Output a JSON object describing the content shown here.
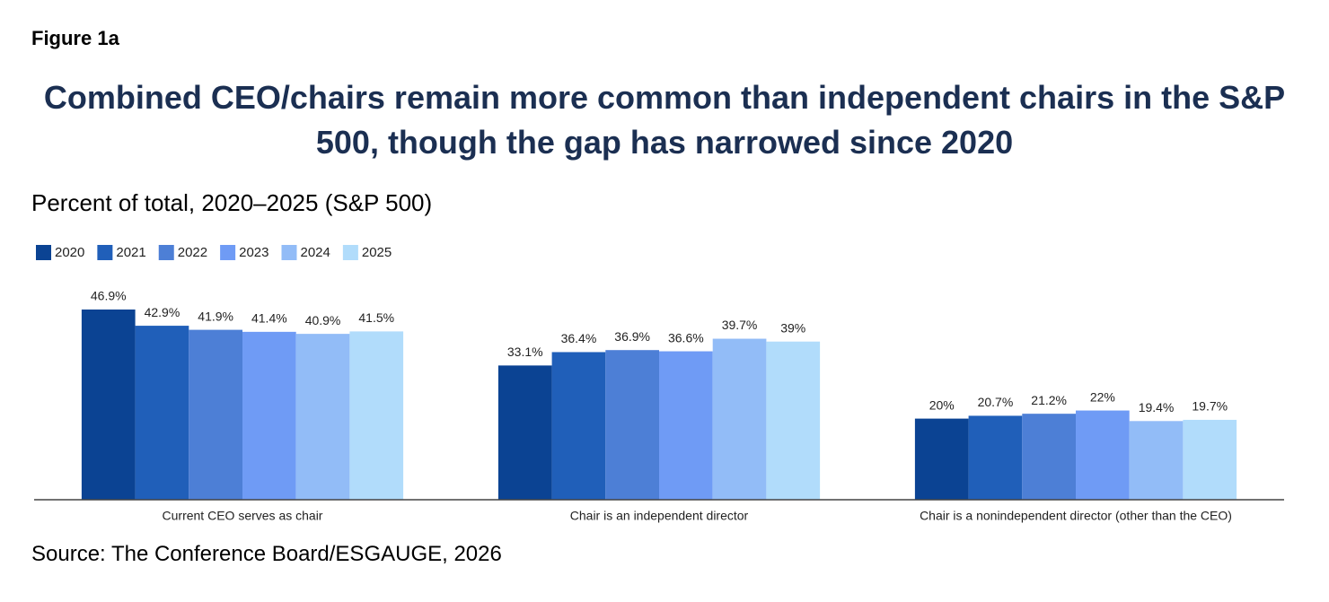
{
  "chart_data": {
    "type": "bar",
    "label": "Figure 1a",
    "title": "Combined CEO/chairs remain more common than independent chairs in the S&P 500, though the gap has narrowed since 2020",
    "subtitle": "Percent of total, 2020–2025 (S&P 500)",
    "source": "Source: The Conference Board/ESGAUGE, 2026",
    "categories": [
      "Current CEO serves as chair",
      "Chair is an independent director",
      "Chair is a nonindependent director (other than the CEO)"
    ],
    "series": [
      {
        "name": "2020",
        "color": "#0b4393",
        "values": [
          46.9,
          33.1,
          20
        ],
        "value_labels": [
          "46.9%",
          "33.1%",
          "20%"
        ]
      },
      {
        "name": "2021",
        "color": "#205fb9",
        "values": [
          42.9,
          36.4,
          20.7
        ],
        "value_labels": [
          "42.9%",
          "36.4%",
          "20.7%"
        ]
      },
      {
        "name": "2022",
        "color": "#4d7fd6",
        "values": [
          41.9,
          36.9,
          21.2
        ],
        "value_labels": [
          "41.9%",
          "36.9%",
          "21.2%"
        ]
      },
      {
        "name": "2023",
        "color": "#6f9bf5",
        "values": [
          41.4,
          36.6,
          22
        ],
        "value_labels": [
          "41.4%",
          "36.6%",
          "22%"
        ]
      },
      {
        "name": "2024",
        "color": "#92bcf7",
        "values": [
          40.9,
          39.7,
          19.4
        ],
        "value_labels": [
          "40.9%",
          "39.7%",
          "19.4%"
        ]
      },
      {
        "name": "2025",
        "color": "#b1dcfb",
        "values": [
          41.5,
          39,
          19.7
        ],
        "value_labels": [
          "41.5%",
          "39%",
          "19.7%"
        ]
      }
    ]
  }
}
